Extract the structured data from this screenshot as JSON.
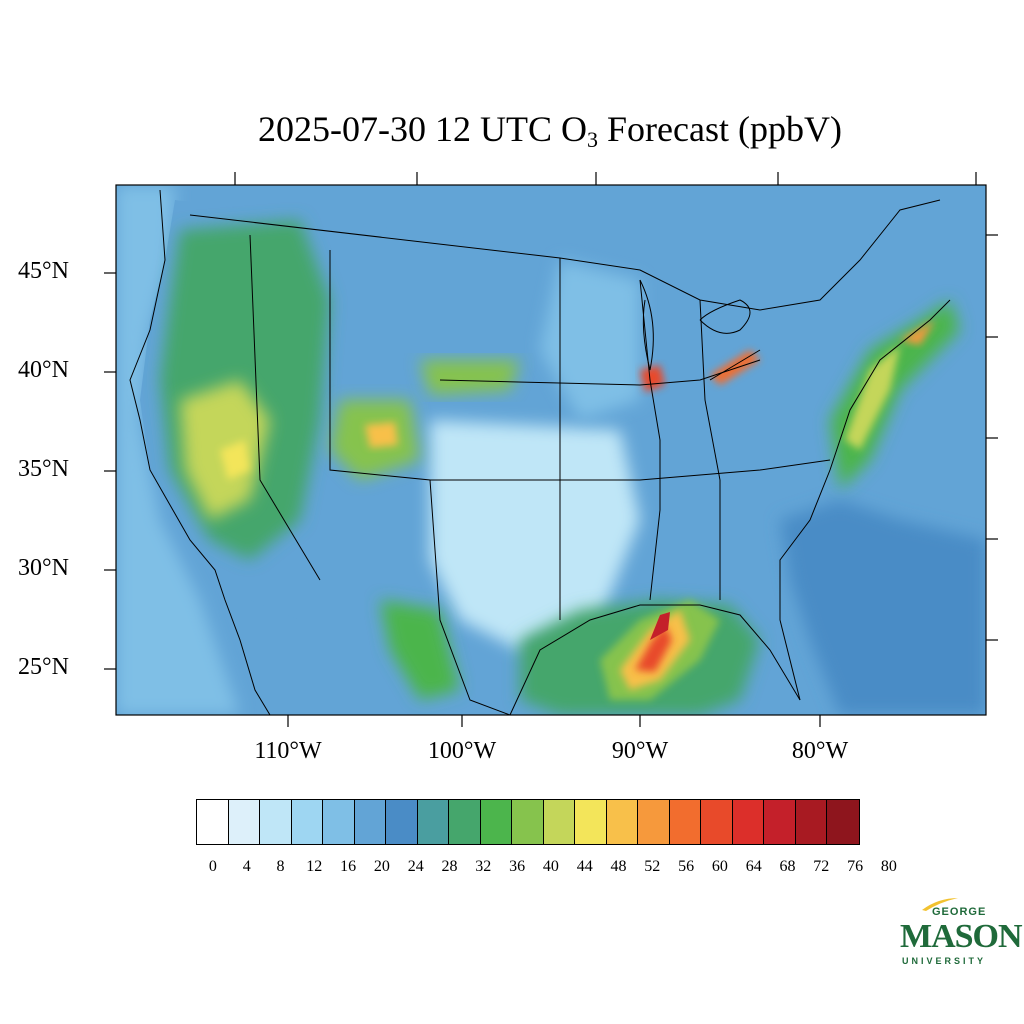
{
  "title": {
    "main": "2025-07-30 12 UTC O",
    "sub": "3",
    "tail": " Forecast (ppbV)"
  },
  "map": {
    "lat_labels": [
      "45°N",
      "40°N",
      "35°N",
      "30°N",
      "25°N"
    ],
    "lon_labels": [
      "110°W",
      "100°W",
      "90°W",
      "80°W"
    ]
  },
  "colorbar": {
    "labels": [
      "0",
      "4",
      "8",
      "12",
      "16",
      "20",
      "24",
      "28",
      "32",
      "36",
      "40",
      "44",
      "48",
      "52",
      "56",
      "60",
      "64",
      "68",
      "72",
      "76",
      "80"
    ],
    "colors": [
      "#ffffff",
      "#ddf0fa",
      "#bfe6f7",
      "#9ed6f2",
      "#7fbfe6",
      "#62a4d6",
      "#4a8cc6",
      "#4a9ea0",
      "#45a66c",
      "#4cb54c",
      "#86c34d",
      "#c4d65a",
      "#f3e55a",
      "#f8c04a",
      "#f6993c",
      "#f26d2e",
      "#e84a2a",
      "#dc2f2a",
      "#c4202a",
      "#a81a22",
      "#8e151d"
    ]
  },
  "logo": {
    "line1": "GEORGE",
    "line2": "MASON",
    "line3": "UNIVERSITY",
    "color": "#1f6a3a",
    "accent": "#f2c230"
  }
}
